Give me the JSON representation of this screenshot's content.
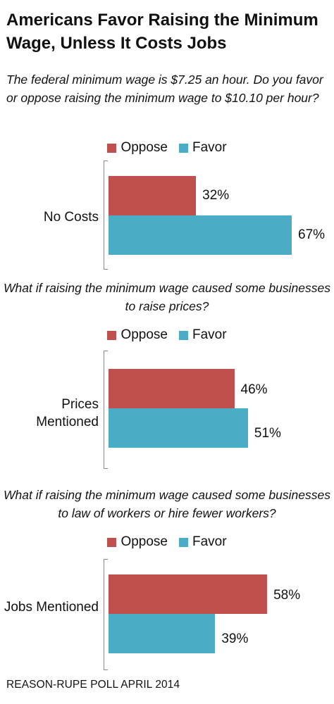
{
  "title": "Americans Favor Raising the Minimum Wage, Unless It Costs Jobs",
  "source": "REASON-RUPE POLL APRIL 2014",
  "colors": {
    "oppose": "#c0504d",
    "favor": "#4bacc6"
  },
  "chart_data": [
    {
      "type": "bar",
      "orientation": "horizontal",
      "title": "The federal minimum wage is $7.25 an hour. Do you favor or oppose raising the minimum wage to $10.10 per hour?",
      "categories": [
        "No Costs"
      ],
      "series": [
        {
          "name": "Oppose",
          "values": [
            32
          ],
          "labels": [
            "32%"
          ]
        },
        {
          "name": "Favor",
          "values": [
            67
          ],
          "labels": [
            "67%"
          ]
        }
      ],
      "legend": [
        "Oppose",
        "Favor"
      ],
      "legend_position": "top",
      "xlim": [
        0,
        67
      ]
    },
    {
      "type": "bar",
      "orientation": "horizontal",
      "title": "What if raising the minimum wage caused some businesses to raise prices?",
      "categories": [
        "Prices Mentioned"
      ],
      "series": [
        {
          "name": "Oppose",
          "values": [
            46
          ],
          "labels": [
            "46%"
          ]
        },
        {
          "name": "Favor",
          "values": [
            51
          ],
          "labels": [
            "51%"
          ]
        }
      ],
      "legend": [
        "Oppose",
        "Favor"
      ],
      "legend_position": "top",
      "xlim": [
        0,
        67
      ]
    },
    {
      "type": "bar",
      "orientation": "horizontal",
      "title": "What if raising the minimum wage caused some businesses to law of workers or hire fewer workers?",
      "categories": [
        "Jobs Mentioned"
      ],
      "series": [
        {
          "name": "Oppose",
          "values": [
            58
          ],
          "labels": [
            "58%"
          ]
        },
        {
          "name": "Favor",
          "values": [
            39
          ],
          "labels": [
            "39%"
          ]
        }
      ],
      "legend": [
        "Oppose",
        "Favor"
      ],
      "legend_position": "top",
      "xlim": [
        0,
        67
      ]
    }
  ]
}
